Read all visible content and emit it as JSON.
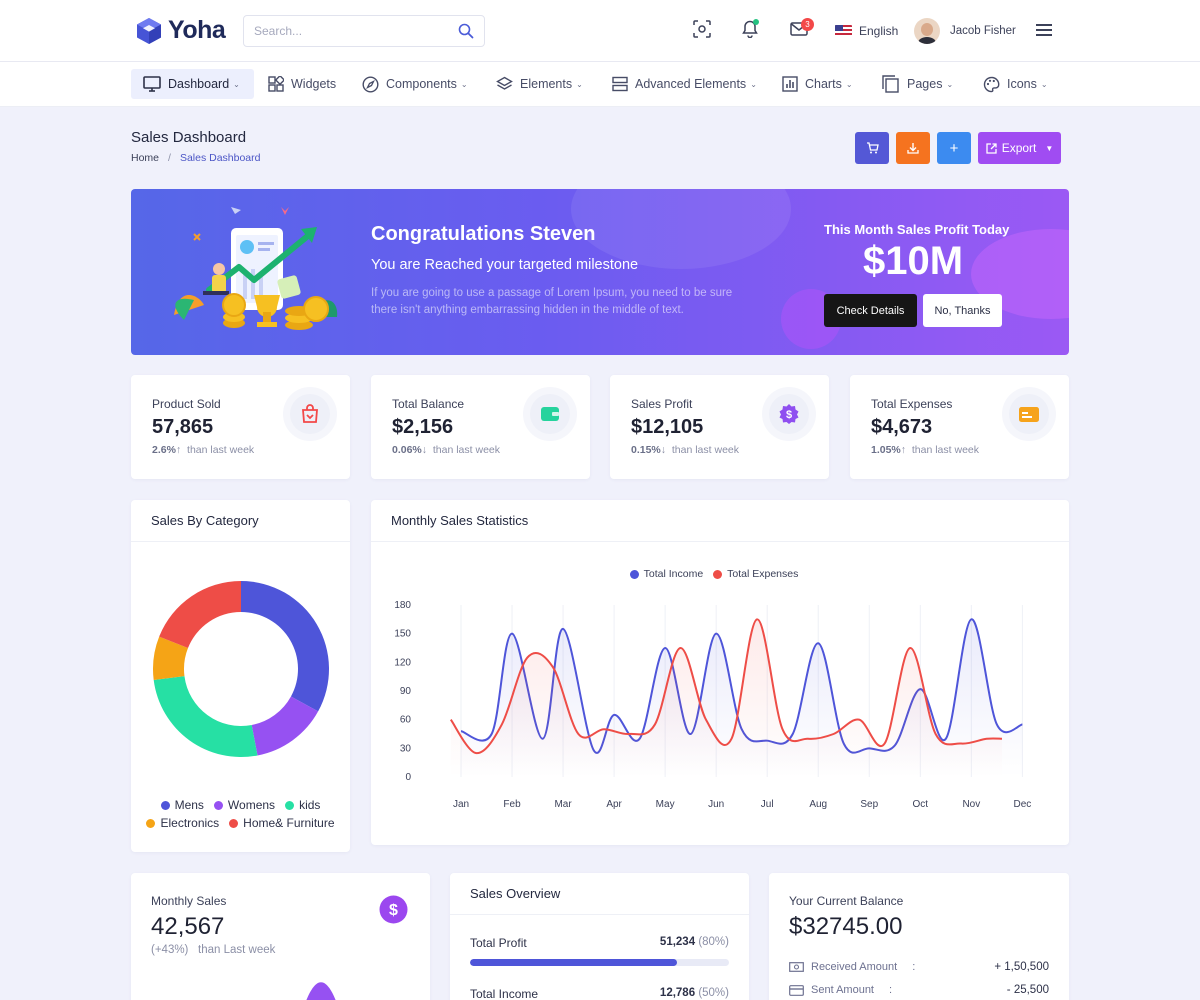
{
  "header": {
    "logo_text": "Yoha",
    "search_placeholder": "Search...",
    "mail_badge": "3",
    "language": "English",
    "user_name": "Jacob Fisher"
  },
  "nav": {
    "items": [
      {
        "label": "Dashboard",
        "icon": "monitor-icon"
      },
      {
        "label": "Widgets",
        "icon": "widgets-icon"
      },
      {
        "label": "Components",
        "icon": "compass-icon"
      },
      {
        "label": "Elements",
        "icon": "layers-icon"
      },
      {
        "label": "Advanced Elements",
        "icon": "server-icon"
      },
      {
        "label": "Charts",
        "icon": "bar-chart-icon"
      },
      {
        "label": "Pages",
        "icon": "pages-icon"
      },
      {
        "label": "Icons",
        "icon": "palette-icon"
      }
    ]
  },
  "page": {
    "title": "Sales Dashboard",
    "breadcrumb_home": "Home",
    "breadcrumb_sep": "/",
    "breadcrumb_current": "Sales Dashboard",
    "export_label": "Export",
    "action_colors": {
      "cart": "#5458d6",
      "download": "#f5731f",
      "add": "#3c8bf0",
      "export": "#a04cf2"
    }
  },
  "hero": {
    "title": "Congratulations Steven",
    "subtitle": "You are Reached your targeted milestone",
    "description": "If you are going to use a passage of Lorem Ipsum, you need to be sure there isn't anything embarrassing hidden in the middle of text.",
    "profit_label": "This Month Sales Profit Today",
    "profit_value": "$10M",
    "check_button": "Check Details",
    "no_button": "No, Thanks"
  },
  "stats": [
    {
      "label": "Product Sold",
      "value": "57,865",
      "pct": "2.6%",
      "arrow": "↑",
      "suffix": "than last week",
      "icon": "shopping-bag-icon",
      "color": "#f34848"
    },
    {
      "label": "Total Balance",
      "value": "$2,156",
      "pct": "0.06%",
      "arrow": "↓",
      "suffix": "than last week",
      "icon": "wallet-icon",
      "color": "#26d39d"
    },
    {
      "label": "Sales Profit",
      "value": "$12,105",
      "pct": "0.15%",
      "arrow": "↓",
      "suffix": "than last week",
      "icon": "dollar-badge-icon",
      "color": "#8f4ff0"
    },
    {
      "label": "Total Expenses",
      "value": "$4,673",
      "pct": "1.05%",
      "arrow": "↑",
      "suffix": "than last week",
      "icon": "credit-card-icon",
      "color": "#f6a31b"
    }
  ],
  "sales_by_category": {
    "title": "Sales By Category",
    "legend": [
      "Mens",
      "Womens",
      "kids",
      "Electronics",
      "Home& Furniture"
    ]
  },
  "monthly_sales_card": {
    "title": "Monthly Sales Statistics"
  },
  "monthly_sales": {
    "label": "Monthly Sales",
    "value": "42,567",
    "change": "(+43%)",
    "suffix": "than Last week"
  },
  "sales_overview": {
    "title": "Sales Overview",
    "rows": [
      {
        "label": "Total Profit",
        "value": "51,234",
        "pct": "(80%)",
        "fraction": 0.8
      },
      {
        "label": "Total Income",
        "value": "12,786",
        "pct": "(50%)",
        "fraction": 0.5
      }
    ]
  },
  "balance": {
    "label": "Your Current Balance",
    "value": "$32745.00",
    "rows": [
      {
        "label": "Received Amount",
        "colon": ":",
        "value": "+ 1,50,500",
        "icon": "cash-icon"
      },
      {
        "label": "Sent Amount",
        "colon": ":",
        "value": "- 25,500",
        "icon": "card-icon"
      }
    ]
  },
  "chart_data": [
    {
      "type": "pie",
      "categories": [
        "Mens",
        "Womens",
        "kids",
        "Electronics",
        "Home& Furniture"
      ],
      "values": [
        33,
        14,
        26,
        8,
        19
      ],
      "colors": [
        "#4e55d9",
        "#9651f2",
        "#26e0a4",
        "#f5a416",
        "#ee4d47"
      ],
      "donut": true,
      "legend": "bottom"
    },
    {
      "type": "line",
      "categories": [
        "Jan",
        "Feb",
        "Mar",
        "Apr",
        "May",
        "Jun",
        "Jul",
        "Aug",
        "Sep",
        "Oct",
        "Nov",
        "Dec"
      ],
      "series": [
        {
          "name": "Total Income",
          "color": "#4e55d9",
          "x": [
            0,
            0.6,
            1,
            1.6,
            2,
            2.6,
            3,
            3.5,
            4,
            4.5,
            5,
            5.5,
            6,
            6.5,
            7,
            7.5,
            8,
            8.5,
            9,
            9.5,
            10,
            10.5,
            11
          ],
          "values": [
            48,
            45,
            150,
            40,
            155,
            28,
            65,
            40,
            135,
            45,
            150,
            50,
            38,
            45,
            140,
            35,
            30,
            33,
            92,
            40,
            165,
            55,
            55
          ]
        },
        {
          "name": "Total Expenses",
          "color": "#ee4d47",
          "x": [
            -0.2,
            0.3,
            0.8,
            1.3,
            1.8,
            2.3,
            2.8,
            3.3,
            3.8,
            4.3,
            4.8,
            5.3,
            5.8,
            6.3,
            6.8,
            7.3,
            7.8,
            8.3,
            8.8,
            9.3,
            9.8,
            10.3,
            10.6
          ],
          "values": [
            60,
            25,
            55,
            125,
            115,
            45,
            50,
            45,
            55,
            135,
            60,
            40,
            165,
            50,
            40,
            45,
            60,
            35,
            135,
            45,
            35,
            40,
            40
          ]
        }
      ],
      "ylim": [
        0,
        180
      ],
      "yticks": [
        "180",
        "150",
        "120",
        "90",
        "60",
        "30",
        "0"
      ],
      "legend": "top",
      "grid": "vertical"
    }
  ]
}
